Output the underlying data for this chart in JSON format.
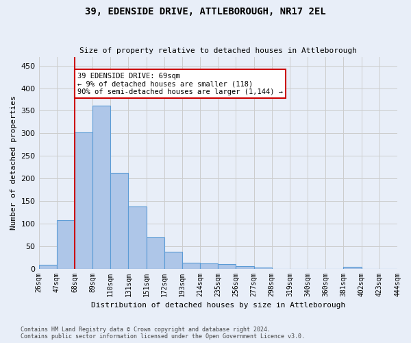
{
  "title": "39, EDENSIDE DRIVE, ATTLEBOROUGH, NR17 2EL",
  "subtitle": "Size of property relative to detached houses in Attleborough",
  "xlabel": "Distribution of detached houses by size in Attleborough",
  "ylabel": "Number of detached properties",
  "bin_labels": [
    "26sqm",
    "47sqm",
    "68sqm",
    "89sqm",
    "110sqm",
    "131sqm",
    "151sqm",
    "172sqm",
    "193sqm",
    "214sqm",
    "235sqm",
    "256sqm",
    "277sqm",
    "298sqm",
    "319sqm",
    "340sqm",
    "360sqm",
    "381sqm",
    "402sqm",
    "423sqm",
    "444sqm"
  ],
  "bar_values": [
    9,
    108,
    302,
    362,
    213,
    138,
    70,
    38,
    13,
    11,
    10,
    6,
    3,
    0,
    0,
    0,
    0,
    4,
    0,
    0
  ],
  "bar_color": "#aec6e8",
  "bar_edge_color": "#5b9bd5",
  "ylim": [
    0,
    470
  ],
  "yticks": [
    0,
    50,
    100,
    150,
    200,
    250,
    300,
    350,
    400,
    450
  ],
  "red_line_bin_index": 2,
  "annotation_text": "39 EDENSIDE DRIVE: 69sqm\n← 9% of detached houses are smaller (118)\n90% of semi-detached houses are larger (1,144) →",
  "annotation_box_color": "#ffffff",
  "annotation_box_edge": "#cc0000",
  "red_line_color": "#cc0000",
  "background_color": "#e8eef8",
  "grid_color": "#cccccc",
  "footer_line1": "Contains HM Land Registry data © Crown copyright and database right 2024.",
  "footer_line2": "Contains public sector information licensed under the Open Government Licence v3.0."
}
